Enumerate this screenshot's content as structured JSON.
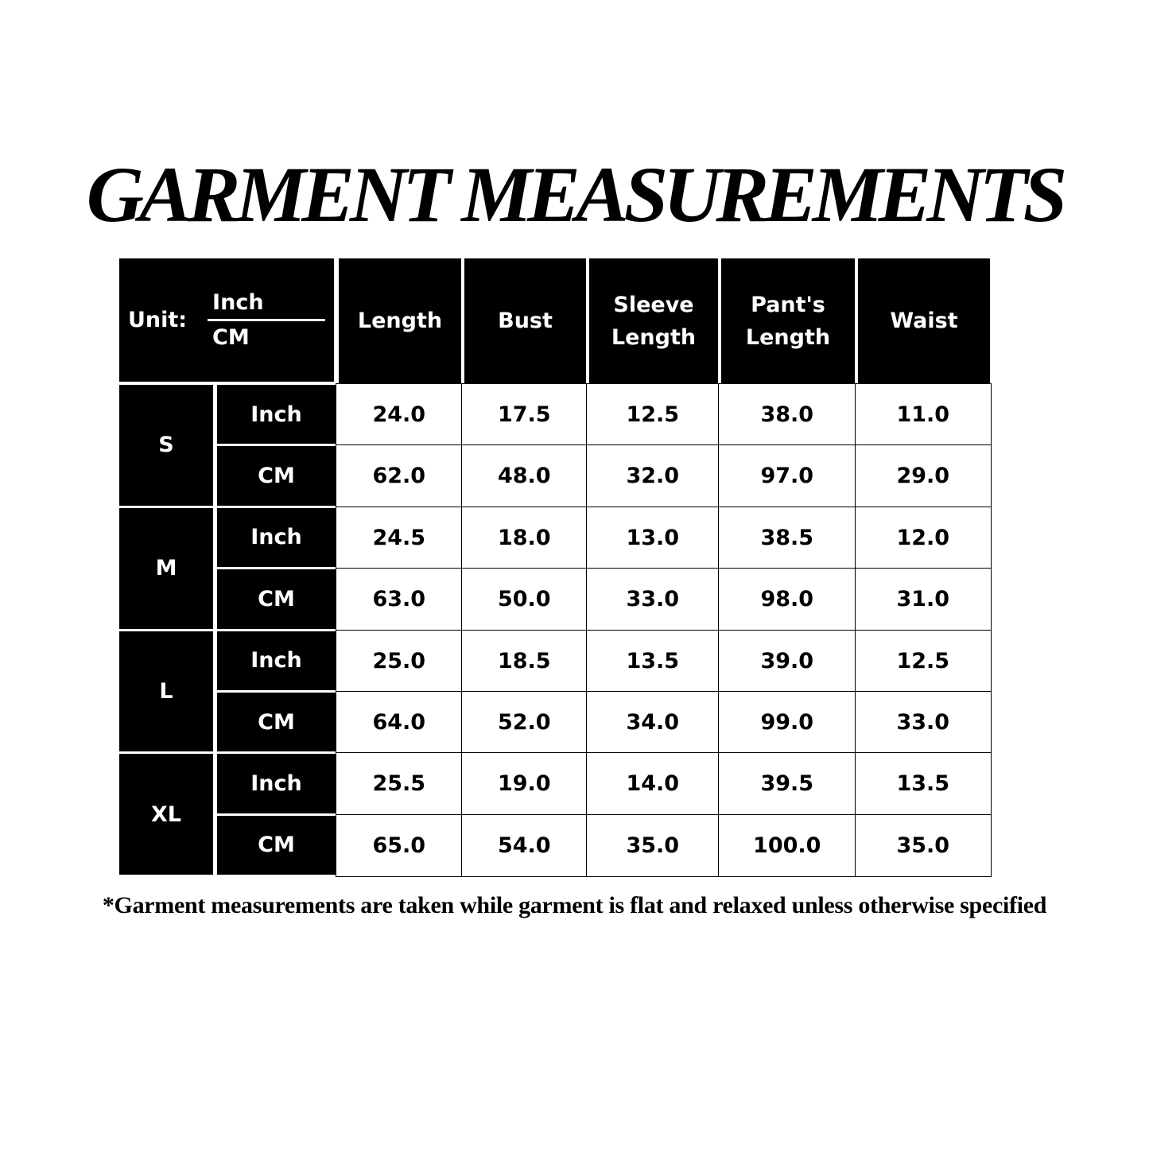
{
  "title": "GARMENT MEASUREMENTS",
  "table": {
    "unit_label": "Unit:",
    "unit_top": "Inch",
    "unit_bottom": "CM",
    "columns": [
      "Length",
      "Bust",
      "Sleeve Length",
      "Pant's Length",
      "Waist"
    ],
    "sizes": [
      {
        "size": "S",
        "rows": [
          {
            "unit": "Inch",
            "values": [
              "24.0",
              "17.5",
              "12.5",
              "38.0",
              "11.0"
            ]
          },
          {
            "unit": "CM",
            "values": [
              "62.0",
              "48.0",
              "32.0",
              "97.0",
              "29.0"
            ]
          }
        ]
      },
      {
        "size": "M",
        "rows": [
          {
            "unit": "Inch",
            "values": [
              "24.5",
              "18.0",
              "13.0",
              "38.5",
              "12.0"
            ]
          },
          {
            "unit": "CM",
            "values": [
              "63.0",
              "50.0",
              "33.0",
              "98.0",
              "31.0"
            ]
          }
        ]
      },
      {
        "size": "L",
        "rows": [
          {
            "unit": "Inch",
            "values": [
              "25.0",
              "18.5",
              "13.5",
              "39.0",
              "12.5"
            ]
          },
          {
            "unit": "CM",
            "values": [
              "64.0",
              "52.0",
              "34.0",
              "99.0",
              "33.0"
            ]
          }
        ]
      },
      {
        "size": "XL",
        "rows": [
          {
            "unit": "Inch",
            "values": [
              "25.5",
              "19.0",
              "14.0",
              "39.5",
              "13.5"
            ]
          },
          {
            "unit": "CM",
            "values": [
              "65.0",
              "54.0",
              "35.0",
              "100.0",
              "35.0"
            ]
          }
        ]
      }
    ]
  },
  "footnote": "*Garment measurements are taken while garment is flat and relaxed unless otherwise specified",
  "colors": {
    "header_bg": "#000000",
    "header_text": "#ffffff",
    "cell_bg": "#ffffff",
    "cell_text": "#000000"
  }
}
